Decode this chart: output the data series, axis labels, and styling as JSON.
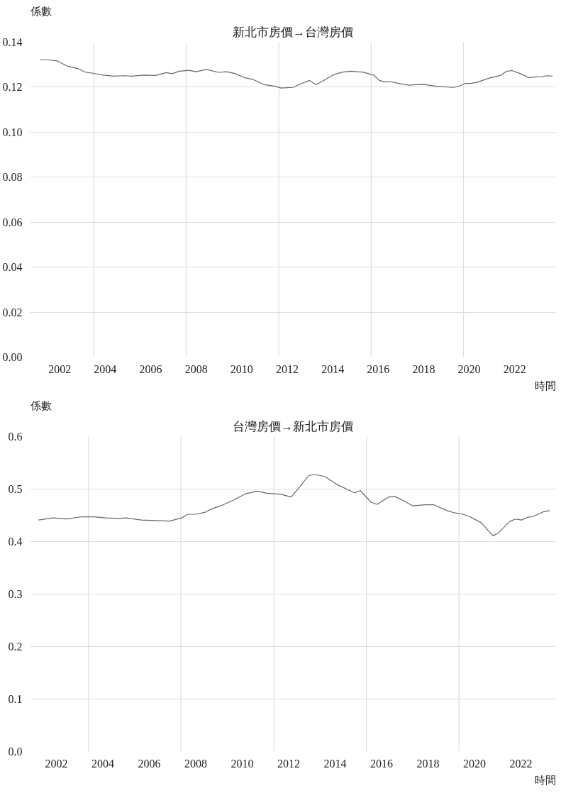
{
  "chart_data": [
    {
      "type": "line",
      "title": "新北市房價→台灣房價",
      "ylabel": "係數",
      "xlabel": "時間",
      "grid": "y",
      "line_style": "solid",
      "xlim": [
        2000.7,
        2023.8
      ],
      "ylim": [
        0,
        0.14
      ],
      "xticks": [
        2002,
        2004,
        2006,
        2008,
        2010,
        2012,
        2014,
        2016,
        2018,
        2020,
        2022
      ],
      "yticks": [
        {
          "value": 0,
          "label": "0.00"
        },
        {
          "value": 0.02,
          "label": "0.02"
        },
        {
          "value": 0.04,
          "label": "0.04"
        },
        {
          "value": 0.06,
          "label": "0.06"
        },
        {
          "value": 0.08,
          "label": "0.08"
        },
        {
          "value": 0.1,
          "label": "0.10"
        },
        {
          "value": 0.12,
          "label": "0.12"
        },
        {
          "value": 0.14,
          "label": "0.14"
        }
      ],
      "ref_lines": [
        {
          "axis": "x",
          "value": 2003.5,
          "color": "#dddddd"
        },
        {
          "axis": "x",
          "value": 2007.56,
          "color": "#dddddd"
        },
        {
          "axis": "x",
          "value": 2011.63,
          "color": "#dddddd"
        },
        {
          "axis": "x",
          "value": 2015.69,
          "color": "#dddddd"
        },
        {
          "axis": "x",
          "value": 2019.75,
          "color": "#dddddd"
        }
      ],
      "series": [
        {
          "color": "#666666",
          "x": [
            2001.13,
            2001.47,
            2001.88,
            2002.35,
            2002.82,
            2003.13,
            2003.45,
            2003.92,
            2004.38,
            2004.85,
            2005.17,
            2005.69,
            2006.21,
            2006.68,
            2006.94,
            2007.25,
            2007.67,
            2007.98,
            2008.45,
            2008.97,
            2009.33,
            2009.7,
            2010.11,
            2010.48,
            2011.0,
            2011.47,
            2011.73,
            2012.25,
            2012.56,
            2012.98,
            2013.27,
            2013.71,
            2014.07,
            2014.44,
            2014.8,
            2015.32,
            2015.79,
            2016.05,
            2016.31,
            2016.52,
            2016.94,
            2017.35,
            2017.67,
            2018.03,
            2018.55,
            2018.92,
            2019.33,
            2019.59,
            2019.85,
            2020.06,
            2020.38,
            2020.9,
            2021.37,
            2021.63,
            2021.88,
            2022.25,
            2022.62,
            2022.93,
            2023.19,
            2023.4,
            2023.66
          ],
          "values": [
            0.1322,
            0.1322,
            0.1317,
            0.1293,
            0.1282,
            0.1267,
            0.1262,
            0.1254,
            0.1249,
            0.1251,
            0.1249,
            0.1254,
            0.1252,
            0.1265,
            0.126,
            0.1271,
            0.1275,
            0.1269,
            0.1279,
            0.1266,
            0.1269,
            0.1261,
            0.1243,
            0.1235,
            0.1211,
            0.1204,
            0.1196,
            0.1199,
            0.1213,
            0.123,
            0.1211,
            0.1236,
            0.1257,
            0.1267,
            0.1271,
            0.1267,
            0.1254,
            0.123,
            0.1223,
            0.1225,
            0.1216,
            0.1209,
            0.1211,
            0.1212,
            0.1204,
            0.1202,
            0.1199,
            0.1206,
            0.1217,
            0.1217,
            0.1223,
            0.1241,
            0.1252,
            0.127,
            0.1274,
            0.126,
            0.1243,
            0.1246,
            0.1247,
            0.1251,
            0.1249
          ]
        }
      ]
    },
    {
      "type": "line",
      "title": "台灣房價→新北市房價",
      "ylabel": "係數",
      "xlabel": "時間",
      "grid": "y",
      "line_style": "solid",
      "xlim": [
        2000.87,
        2023.5
      ],
      "ylim": [
        0,
        0.6
      ],
      "xticks": [
        2002,
        2004,
        2006,
        2008,
        2010,
        2012,
        2014,
        2016,
        2018,
        2020,
        2022
      ],
      "yticks": [
        {
          "value": 0,
          "label": "0.0"
        },
        {
          "value": 0.1,
          "label": "0.1"
        },
        {
          "value": 0.2,
          "label": "0.2"
        },
        {
          "value": 0.3,
          "label": "0.3"
        },
        {
          "value": 0.4,
          "label": "0.4"
        },
        {
          "value": 0.5,
          "label": "0.5"
        },
        {
          "value": 0.6,
          "label": "0.6"
        }
      ],
      "ref_lines": [
        {
          "axis": "x",
          "value": 2003.38,
          "color": "#dddddd"
        },
        {
          "axis": "x",
          "value": 2007.36,
          "color": "#dddddd"
        },
        {
          "axis": "x",
          "value": 2011.37,
          "color": "#dddddd"
        },
        {
          "axis": "x",
          "value": 2015.35,
          "color": "#dddddd"
        },
        {
          "axis": "x",
          "value": 2019.33,
          "color": "#dddddd"
        }
      ],
      "series": [
        {
          "color": "#666666",
          "x": [
            2001.23,
            2001.84,
            2002.45,
            2003.06,
            2003.62,
            2004.13,
            2004.69,
            2005.0,
            2005.66,
            2006.27,
            2006.88,
            2007.39,
            2007.65,
            2008.0,
            2008.41,
            2008.67,
            2009.07,
            2009.63,
            2010.14,
            2010.65,
            2011.06,
            2011.67,
            2012.11,
            2012.49,
            2012.85,
            2013.1,
            2013.56,
            2014.07,
            2014.84,
            2015.09,
            2015.55,
            2015.81,
            2016.32,
            2016.57,
            2017.03,
            2017.34,
            2017.9,
            2018.26,
            2018.82,
            2019.12,
            2019.43,
            2019.78,
            2020.29,
            2020.8,
            2021.05,
            2021.51,
            2021.77,
            2022.02,
            2022.28,
            2022.53,
            2022.99,
            2023.24
          ],
          "values": [
            0.441,
            0.445,
            0.443,
            0.447,
            0.447,
            0.445,
            0.444,
            0.445,
            0.441,
            0.44,
            0.439,
            0.445,
            0.452,
            0.452,
            0.456,
            0.462,
            0.468,
            0.479,
            0.491,
            0.496,
            0.492,
            0.49,
            0.485,
            0.505,
            0.525,
            0.528,
            0.524,
            0.509,
            0.493,
            0.497,
            0.475,
            0.471,
            0.485,
            0.486,
            0.476,
            0.468,
            0.47,
            0.47,
            0.459,
            0.455,
            0.453,
            0.448,
            0.436,
            0.411,
            0.417,
            0.438,
            0.443,
            0.441,
            0.446,
            0.448,
            0.457,
            0.459
          ]
        }
      ]
    }
  ]
}
